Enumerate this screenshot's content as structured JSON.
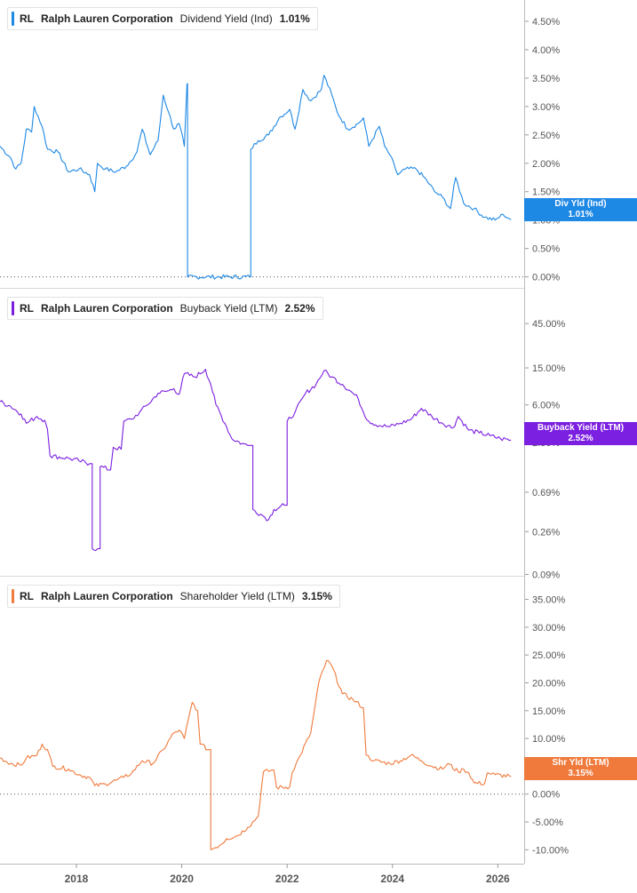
{
  "panels": [
    {
      "id": "div",
      "legend": {
        "ticker": "RL",
        "company": "Ralph Lauren Corporation",
        "metric": "Dividend Yield (Ind)",
        "value": "1.01%"
      },
      "badge": {
        "label": "Div Yld (Ind)",
        "value": "1.01%"
      },
      "color": "#1e88e5"
    },
    {
      "id": "buyback",
      "legend": {
        "ticker": "RL",
        "company": "Ralph Lauren Corporation",
        "metric": "Buyback Yield (LTM)",
        "value": "2.52%"
      },
      "badge": {
        "label": "Buyback Yield (LTM)",
        "value": "2.52%"
      },
      "color": "#7b1fe0"
    },
    {
      "id": "shy",
      "legend": {
        "ticker": "RL",
        "company": "Ralph Lauren Corporation",
        "metric": "Shareholder Yield (LTM)",
        "value": "3.15%"
      },
      "badge": {
        "label": "Shr Yld (LTM)",
        "value": "3.15%"
      },
      "color": "#f07a3c"
    }
  ],
  "chart_data": [
    {
      "type": "line",
      "series": [
        {
          "name": "Dividend Yield (Ind)",
          "values": [
            [
              2016.6,
              2.3
            ],
            [
              2016.8,
              2.1
            ],
            [
              2016.9,
              1.9
            ],
            [
              2017.0,
              2.0
            ],
            [
              2017.1,
              2.6
            ],
            [
              2017.2,
              2.55
            ],
            [
              2017.25,
              3.0
            ],
            [
              2017.4,
              2.65
            ],
            [
              2017.5,
              2.25
            ],
            [
              2017.7,
              2.2
            ],
            [
              2017.9,
              1.85
            ],
            [
              2018.1,
              1.9
            ],
            [
              2018.3,
              1.8
            ],
            [
              2018.4,
              1.5
            ],
            [
              2018.45,
              2.0
            ],
            [
              2018.6,
              1.9
            ],
            [
              2018.8,
              1.85
            ],
            [
              2019.0,
              1.95
            ],
            [
              2019.2,
              2.2
            ],
            [
              2019.3,
              2.6
            ],
            [
              2019.45,
              2.15
            ],
            [
              2019.6,
              2.4
            ],
            [
              2019.7,
              3.2
            ],
            [
              2019.8,
              2.9
            ],
            [
              2019.9,
              2.6
            ],
            [
              2020.0,
              2.7
            ],
            [
              2020.1,
              2.3
            ],
            [
              2020.15,
              3.4
            ],
            [
              2020.16,
              0.0
            ],
            [
              2021.35,
              0.0
            ],
            [
              2021.36,
              2.25
            ],
            [
              2021.5,
              2.4
            ],
            [
              2021.7,
              2.5
            ],
            [
              2021.9,
              2.8
            ],
            [
              2022.1,
              2.95
            ],
            [
              2022.2,
              2.6
            ],
            [
              2022.35,
              3.3
            ],
            [
              2022.5,
              3.1
            ],
            [
              2022.7,
              3.3
            ],
            [
              2022.75,
              3.55
            ],
            [
              2022.9,
              3.2
            ],
            [
              2023.0,
              2.9
            ],
            [
              2023.2,
              2.6
            ],
            [
              2023.4,
              2.7
            ],
            [
              2023.5,
              2.8
            ],
            [
              2023.6,
              2.3
            ],
            [
              2023.8,
              2.65
            ],
            [
              2023.9,
              2.3
            ],
            [
              2024.0,
              2.15
            ],
            [
              2024.15,
              1.8
            ],
            [
              2024.3,
              1.9
            ],
            [
              2024.5,
              1.9
            ],
            [
              2024.7,
              1.7
            ],
            [
              2024.85,
              1.5
            ],
            [
              2025.0,
              1.4
            ],
            [
              2025.15,
              1.2
            ],
            [
              2025.25,
              1.75
            ],
            [
              2025.4,
              1.3
            ],
            [
              2025.6,
              1.2
            ],
            [
              2025.8,
              1.05
            ],
            [
              2026.0,
              1.0
            ],
            [
              2026.15,
              1.1
            ],
            [
              2026.3,
              1.01
            ]
          ]
        }
      ],
      "xlim": [
        2016.6,
        2026.55
      ],
      "ylim": [
        -0.1,
        4.75
      ],
      "y_ticks": [
        "4.50%",
        "4.00%",
        "3.50%",
        "3.00%",
        "2.50%",
        "2.00%",
        "1.50%",
        "1.00%",
        "0.50%",
        "0.00%"
      ],
      "y_tick_values": [
        4.5,
        4.0,
        3.5,
        3.0,
        2.5,
        2.0,
        1.5,
        1.0,
        0.5,
        0.0
      ],
      "dotted_zero": 0.0
    },
    {
      "type": "line",
      "log_scale": true,
      "series": [
        {
          "name": "Buyback Yield (LTM)",
          "values": [
            [
              2016.6,
              6.5
            ],
            [
              2016.8,
              5.8
            ],
            [
              2017.0,
              4.8
            ],
            [
              2017.1,
              3.8
            ],
            [
              2017.3,
              4.5
            ],
            [
              2017.45,
              4.1
            ],
            [
              2017.5,
              3.3
            ],
            [
              2017.55,
              1.7
            ],
            [
              2017.9,
              1.6
            ],
            [
              2018.1,
              1.5
            ],
            [
              2018.3,
              1.4
            ],
            [
              2018.35,
              0.17
            ],
            [
              2018.45,
              0.17
            ],
            [
              2018.5,
              1.3
            ],
            [
              2018.7,
              1.2
            ],
            [
              2018.75,
              2.1
            ],
            [
              2018.9,
              2.0
            ],
            [
              2018.95,
              4.0
            ],
            [
              2019.1,
              4.2
            ],
            [
              2019.25,
              5.0
            ],
            [
              2019.4,
              6.0
            ],
            [
              2019.6,
              8.0
            ],
            [
              2019.8,
              8.5
            ],
            [
              2019.9,
              9.0
            ],
            [
              2020.0,
              7.8
            ],
            [
              2020.1,
              13.0
            ],
            [
              2020.3,
              12.0
            ],
            [
              2020.5,
              14.5
            ],
            [
              2020.6,
              10.0
            ],
            [
              2020.7,
              6.0
            ],
            [
              2020.9,
              3.5
            ],
            [
              2021.0,
              2.6
            ],
            [
              2021.2,
              2.3
            ],
            [
              2021.3,
              2.2
            ],
            [
              2021.4,
              0.45
            ],
            [
              2021.55,
              0.4
            ],
            [
              2021.7,
              0.35
            ],
            [
              2021.8,
              0.45
            ],
            [
              2022.0,
              0.5
            ],
            [
              2022.05,
              4.0
            ],
            [
              2022.2,
              5.0
            ],
            [
              2022.4,
              8.0
            ],
            [
              2022.6,
              10.0
            ],
            [
              2022.75,
              14.0
            ],
            [
              2022.9,
              12.0
            ],
            [
              2023.1,
              10.0
            ],
            [
              2023.3,
              8.0
            ],
            [
              2023.4,
              7.0
            ],
            [
              2023.5,
              5.0
            ],
            [
              2023.6,
              4.0
            ],
            [
              2023.8,
              3.6
            ],
            [
              2024.0,
              3.5
            ],
            [
              2024.2,
              3.8
            ],
            [
              2024.4,
              4.2
            ],
            [
              2024.6,
              5.5
            ],
            [
              2024.8,
              4.5
            ],
            [
              2025.0,
              3.8
            ],
            [
              2025.2,
              3.4
            ],
            [
              2025.3,
              4.5
            ],
            [
              2025.5,
              3.2
            ],
            [
              2025.7,
              3.0
            ],
            [
              2025.9,
              2.8
            ],
            [
              2026.1,
              2.6
            ],
            [
              2026.3,
              2.52
            ]
          ]
        }
      ],
      "xlim": [
        2016.6,
        2026.55
      ],
      "ylim": [
        0.087,
        80
      ],
      "y_ticks": [
        "45.00%",
        "15.00%",
        "6.00%",
        "2.36%",
        "0.69%",
        "0.26%",
        "0.09%"
      ],
      "y_tick_values": [
        45,
        15,
        6,
        2.36,
        0.69,
        0.26,
        0.09
      ]
    },
    {
      "type": "line",
      "series": [
        {
          "name": "Shareholder Yield (LTM)",
          "values": [
            [
              2016.6,
              6.5
            ],
            [
              2016.8,
              5.5
            ],
            [
              2017.0,
              5.2
            ],
            [
              2017.1,
              6.5
            ],
            [
              2017.3,
              7.0
            ],
            [
              2017.4,
              9.0
            ],
            [
              2017.5,
              8.0
            ],
            [
              2017.6,
              5.0
            ],
            [
              2017.9,
              4.5
            ],
            [
              2018.1,
              3.5
            ],
            [
              2018.3,
              3.0
            ],
            [
              2018.4,
              1.5
            ],
            [
              2018.6,
              1.8
            ],
            [
              2018.8,
              2.5
            ],
            [
              2018.95,
              3.0
            ],
            [
              2019.1,
              3.8
            ],
            [
              2019.3,
              6.0
            ],
            [
              2019.5,
              5.5
            ],
            [
              2019.7,
              8.0
            ],
            [
              2019.9,
              11.0
            ],
            [
              2020.0,
              11.5
            ],
            [
              2020.1,
              10.0
            ],
            [
              2020.25,
              16.5
            ],
            [
              2020.35,
              15.0
            ],
            [
              2020.4,
              9.0
            ],
            [
              2020.55,
              8.0
            ],
            [
              2020.6,
              -10.0
            ],
            [
              2020.8,
              -9.0
            ],
            [
              2020.9,
              -8.0
            ],
            [
              2021.1,
              -7.5
            ],
            [
              2021.3,
              -6.0
            ],
            [
              2021.5,
              -4.0
            ],
            [
              2021.6,
              4.0
            ],
            [
              2021.8,
              4.3
            ],
            [
              2021.85,
              1.2
            ],
            [
              2022.1,
              1.3
            ],
            [
              2022.15,
              4.0
            ],
            [
              2022.3,
              7.0
            ],
            [
              2022.5,
              11.0
            ],
            [
              2022.65,
              20.0
            ],
            [
              2022.8,
              24.0
            ],
            [
              2022.9,
              23.0
            ],
            [
              2023.1,
              18.0
            ],
            [
              2023.3,
              17.0
            ],
            [
              2023.5,
              15.5
            ],
            [
              2023.55,
              7.0
            ],
            [
              2023.7,
              6.0
            ],
            [
              2024.0,
              5.5
            ],
            [
              2024.2,
              6.0
            ],
            [
              2024.4,
              7.0
            ],
            [
              2024.6,
              6.0
            ],
            [
              2024.8,
              5.0
            ],
            [
              2025.0,
              4.5
            ],
            [
              2025.1,
              5.5
            ],
            [
              2025.3,
              4.0
            ],
            [
              2025.4,
              4.5
            ],
            [
              2025.5,
              3.8
            ],
            [
              2025.6,
              2.0
            ],
            [
              2025.8,
              1.9
            ],
            [
              2025.85,
              3.8
            ],
            [
              2026.0,
              3.5
            ],
            [
              2026.3,
              3.15
            ]
          ]
        }
      ],
      "xlim": [
        2016.6,
        2026.55
      ],
      "ylim": [
        -12.5,
        37
      ],
      "y_ticks": [
        "35.00%",
        "30.00%",
        "25.00%",
        "20.00%",
        "15.00%",
        "10.00%",
        "5.00%",
        "0.00%",
        "-5.00%",
        "-10.00%"
      ],
      "y_tick_values": [
        35,
        30,
        25,
        20,
        15,
        10,
        5,
        0,
        -5,
        -10
      ],
      "dotted_zero": 0.0
    }
  ],
  "x_axis": {
    "ticks": [
      "2018",
      "2020",
      "2022",
      "2024",
      "2026"
    ],
    "tick_values": [
      2018.05,
      2020.05,
      2022.05,
      2024.05,
      2026.05
    ]
  }
}
